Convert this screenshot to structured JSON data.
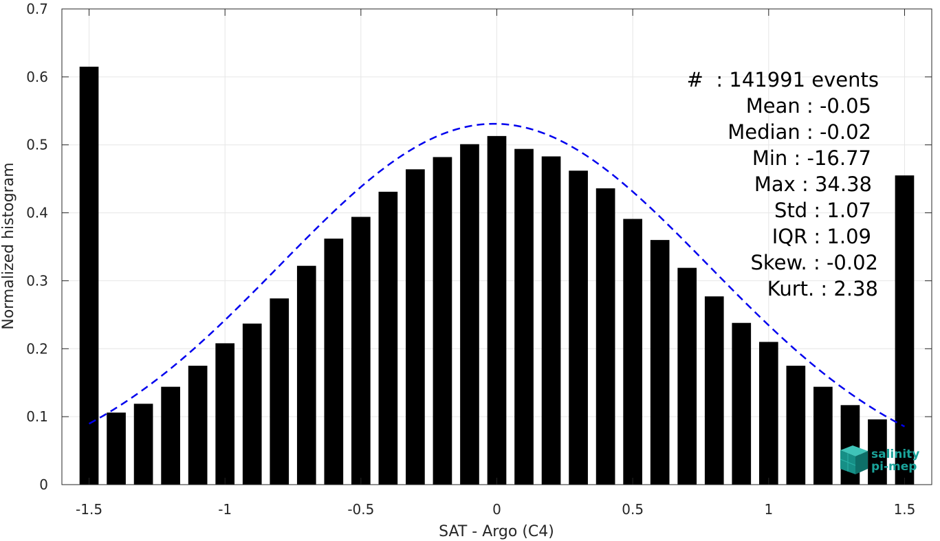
{
  "chart_data": {
    "type": "bar",
    "xlabel": "SAT - Argo (C4)",
    "ylabel": "Normalized histogram",
    "xlim": [
      -1.6,
      1.6
    ],
    "ylim": [
      0,
      0.7
    ],
    "xticks": [
      -1.5,
      -1,
      -0.5,
      0,
      0.5,
      1,
      1.5
    ],
    "xtick_labels": [
      "-1.5",
      "-1",
      "-0.5",
      "0",
      "0.5",
      "1",
      "1.5"
    ],
    "yticks": [
      0,
      0.1,
      0.2,
      0.3,
      0.4,
      0.5,
      0.6,
      0.7
    ],
    "ytick_labels": [
      "0",
      "0.1",
      "0.2",
      "0.3",
      "0.4",
      "0.5",
      "0.6",
      "0.7"
    ],
    "grid": true,
    "bar_color": "#000000",
    "fit_color": "#0000ee",
    "bins": [
      -1.5,
      -1.4,
      -1.3,
      -1.2,
      -1.1,
      -1.0,
      -0.9,
      -0.8,
      -0.7,
      -0.6,
      -0.5,
      -0.4,
      -0.3,
      -0.2,
      -0.1,
      0.0,
      0.1,
      0.2,
      0.3,
      0.4,
      0.5,
      0.6,
      0.7,
      0.8,
      0.9,
      1.0,
      1.1,
      1.2,
      1.3,
      1.4,
      1.5
    ],
    "values": [
      0.615,
      0.106,
      0.119,
      0.144,
      0.175,
      0.208,
      0.237,
      0.274,
      0.322,
      0.362,
      0.394,
      0.431,
      0.464,
      0.482,
      0.501,
      0.513,
      0.494,
      0.483,
      0.462,
      0.436,
      0.391,
      0.36,
      0.319,
      0.277,
      0.238,
      0.21,
      0.175,
      0.144,
      0.117,
      0.096,
      0.455
    ],
    "fit_curve": {
      "name": "gaussian fit",
      "style": "dashed",
      "mean": -0.01,
      "peak": 0.531,
      "sigma": 0.79,
      "x_range": [
        -1.5,
        1.5
      ]
    },
    "stats": [
      {
        "label": "#  : 141991 events"
      },
      {
        "label": "Mean : -0.05"
      },
      {
        "label": "Median : -0.02"
      },
      {
        "label": "Min : -16.77"
      },
      {
        "label": "Max : 34.38"
      },
      {
        "label": "Std : 1.07"
      },
      {
        "label": "IQR : 1.09"
      },
      {
        "label": "Skew. : -0.02"
      },
      {
        "label": "Kurt. : 2.38"
      }
    ]
  },
  "logo": {
    "line1": "salinity",
    "line2": "pi-mep",
    "color": "#1aa39a"
  }
}
